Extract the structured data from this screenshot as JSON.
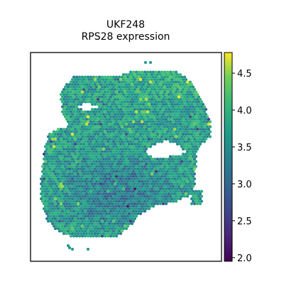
{
  "chart_data": {
    "type": "scatter",
    "title": "UKF248",
    "subtitle": "RPS28 expression",
    "xlabel": "",
    "ylabel": "",
    "axes_ticks_visible": false,
    "grid": false,
    "colormap": "viridis",
    "colorbar": {
      "vmin": 1.95,
      "vmax": 4.78,
      "ticks": [
        2.0,
        2.5,
        3.0,
        3.5,
        4.0,
        4.5
      ],
      "tick_labels": [
        "2.0",
        "2.5",
        "3.0",
        "3.5",
        "4.0",
        "4.5"
      ]
    },
    "value_summary": {
      "typical": 3.5,
      "range": [
        1.95,
        4.78
      ]
    }
  }
}
